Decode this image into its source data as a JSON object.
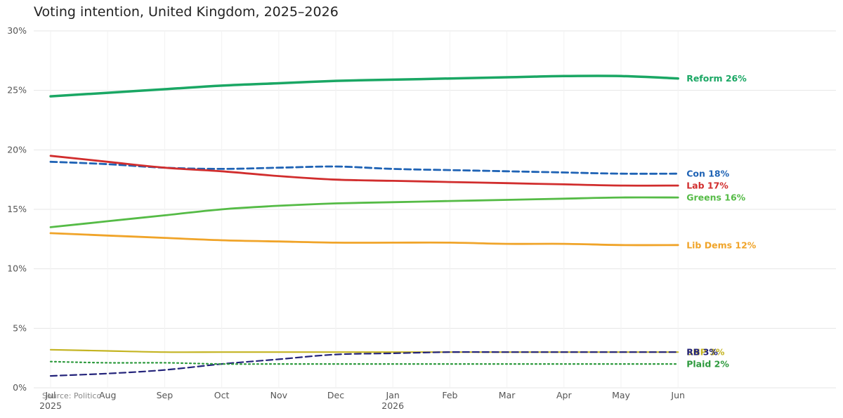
{
  "title": "Voting intention, United Kingdom, 2025–2026",
  "source": "Source: Politico",
  "chart_data": {
    "type": "line",
    "title": "Voting intention, United Kingdom, 2025–2026",
    "xlabel": "",
    "ylabel": "",
    "x": [
      "2025-07",
      "2025-08",
      "2025-09",
      "2025-10",
      "2025-11",
      "2025-12",
      "2026-01",
      "2026-02",
      "2026-03",
      "2026-04",
      "2026-05",
      "2026-06"
    ],
    "x_tick_labels": [
      {
        "month": "Jul",
        "year": "2025"
      },
      {
        "month": "Aug",
        "year": ""
      },
      {
        "month": "Sep",
        "year": ""
      },
      {
        "month": "Oct",
        "year": ""
      },
      {
        "month": "Nov",
        "year": ""
      },
      {
        "month": "Dec",
        "year": ""
      },
      {
        "month": "Jan",
        "year": "2026"
      },
      {
        "month": "Feb",
        "year": ""
      },
      {
        "month": "Mar",
        "year": ""
      },
      {
        "month": "Apr",
        "year": ""
      },
      {
        "month": "May",
        "year": ""
      },
      {
        "month": "Jun",
        "year": ""
      }
    ],
    "y_ticks": [
      0,
      5,
      10,
      15,
      20,
      25,
      30
    ],
    "y_tick_labels": [
      "0%",
      "5%",
      "10%",
      "15%",
      "20%",
      "25%",
      "30%"
    ],
    "ylim": [
      0,
      30
    ],
    "grid": true,
    "legend": "end-of-line labels",
    "series": [
      {
        "name": "Reform",
        "label": "Reform 26%",
        "color": "#1aa764",
        "style": "solid",
        "width": 3.5,
        "values": [
          24.5,
          24.8,
          25.1,
          25.4,
          25.6,
          25.8,
          25.9,
          26.0,
          26.1,
          26.2,
          26.2,
          26.0
        ]
      },
      {
        "name": "Con",
        "label": "Con 18%",
        "color": "#1f63b5",
        "style": "dashed",
        "width": 2.8,
        "values": [
          19.0,
          18.8,
          18.5,
          18.4,
          18.5,
          18.6,
          18.4,
          18.3,
          18.2,
          18.1,
          18.0,
          18.0
        ]
      },
      {
        "name": "Lab",
        "label": "Lab 17%",
        "color": "#d12d2d",
        "style": "solid",
        "width": 2.8,
        "values": [
          19.5,
          19.0,
          18.5,
          18.2,
          17.8,
          17.5,
          17.4,
          17.3,
          17.2,
          17.1,
          17.0,
          17.0
        ]
      },
      {
        "name": "Greens",
        "label": "Greens 16%",
        "color": "#55bb46",
        "style": "solid",
        "width": 2.8,
        "values": [
          13.5,
          14.0,
          14.5,
          15.0,
          15.3,
          15.5,
          15.6,
          15.7,
          15.8,
          15.9,
          16.0,
          16.0
        ]
      },
      {
        "name": "Lib Dems",
        "label": "Lib Dems 12%",
        "color": "#f0a429",
        "style": "solid",
        "width": 2.8,
        "values": [
          13.0,
          12.8,
          12.6,
          12.4,
          12.3,
          12.2,
          12.2,
          12.2,
          12.1,
          12.1,
          12.0,
          12.0
        ]
      },
      {
        "name": "SNP",
        "label": "SNP 3%",
        "color": "#c4b422",
        "style": "solid",
        "width": 2.2,
        "values": [
          3.2,
          3.1,
          3.0,
          3.0,
          3.0,
          3.0,
          3.0,
          3.0,
          3.0,
          3.0,
          3.0,
          3.0
        ]
      },
      {
        "name": "RB",
        "label": "RB 3%",
        "color": "#23237a",
        "style": "dashed",
        "width": 2.2,
        "values": [
          1.0,
          1.2,
          1.5,
          2.0,
          2.4,
          2.8,
          2.9,
          3.0,
          3.0,
          3.0,
          3.0,
          3.0
        ]
      },
      {
        "name": "Plaid",
        "label": "Plaid 2%",
        "color": "#2e9a3e",
        "style": "dotted",
        "width": 2.2,
        "values": [
          2.2,
          2.1,
          2.1,
          2.0,
          2.0,
          2.0,
          2.0,
          2.0,
          2.0,
          2.0,
          2.0,
          2.0
        ]
      }
    ]
  }
}
